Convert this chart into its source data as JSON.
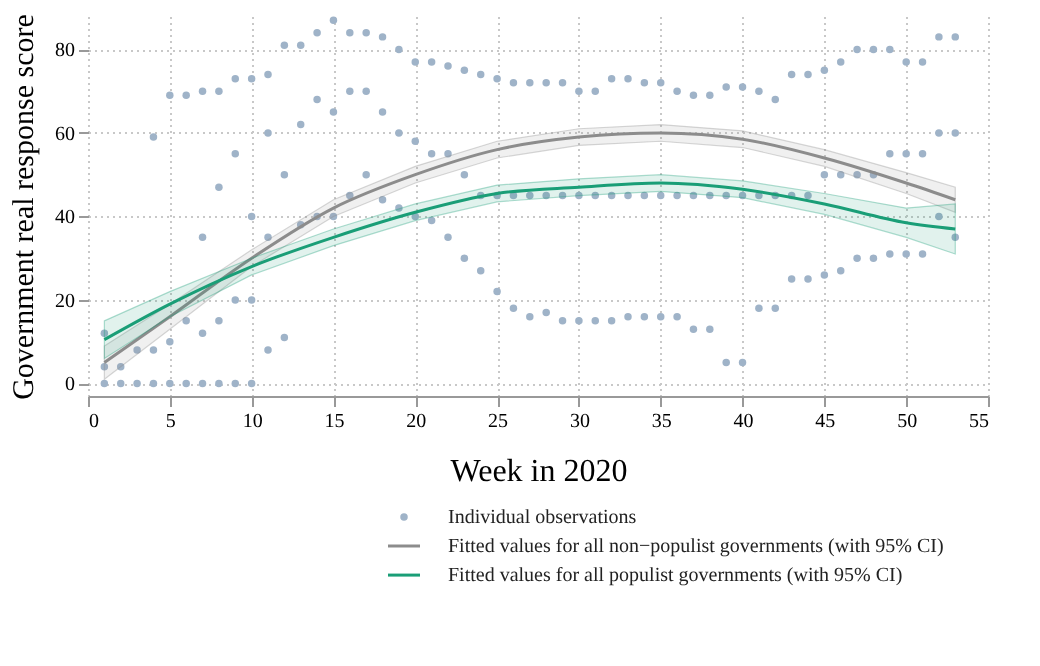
{
  "chart_data": {
    "type": "scatter",
    "xlabel": "Week in 2020",
    "ylabel": "Government real response score",
    "xlim": [
      0,
      55
    ],
    "ylim": [
      -3,
      88
    ],
    "xticks": [
      0,
      5,
      10,
      15,
      20,
      25,
      30,
      35,
      40,
      45,
      50,
      55
    ],
    "yticks": [
      0,
      20,
      40,
      60,
      80
    ],
    "grid": true,
    "legend": "bottom",
    "series": [
      {
        "name": "Individual observations",
        "marker": "circle",
        "color": "#9fb3c8",
        "x": [
          1,
          1,
          1,
          2,
          2,
          3,
          3,
          4,
          4,
          4,
          5,
          5,
          5,
          6,
          6,
          6,
          7,
          7,
          7,
          7,
          8,
          8,
          8,
          8,
          9,
          9,
          9,
          9,
          10,
          10,
          10,
          10,
          11,
          11,
          11,
          11,
          12,
          12,
          12,
          13,
          13,
          13,
          14,
          14,
          14,
          15,
          15,
          15,
          16,
          16,
          16,
          17,
          17,
          17,
          18,
          18,
          18,
          19,
          19,
          19,
          20,
          20,
          20,
          21,
          21,
          21,
          22,
          22,
          22,
          23,
          23,
          23,
          24,
          24,
          24,
          25,
          25,
          25,
          26,
          26,
          26,
          27,
          27,
          27,
          28,
          28,
          28,
          29,
          29,
          29,
          30,
          30,
          30,
          31,
          31,
          31,
          32,
          32,
          32,
          33,
          33,
          33,
          34,
          34,
          34,
          35,
          35,
          35,
          36,
          36,
          36,
          37,
          37,
          37,
          38,
          38,
          38,
          39,
          39,
          39,
          40,
          40,
          40,
          41,
          41,
          41,
          42,
          42,
          42,
          43,
          43,
          43,
          44,
          44,
          44,
          45,
          45,
          45,
          46,
          46,
          46,
          47,
          47,
          47,
          48,
          48,
          48,
          49,
          49,
          49,
          50,
          50,
          50,
          51,
          51,
          51,
          52,
          52,
          52,
          53,
          53,
          53
        ],
        "values": [
          0,
          4,
          12,
          0,
          4,
          0,
          8,
          0,
          8,
          59,
          0,
          10,
          69,
          0,
          15,
          69,
          0,
          12,
          35,
          70,
          0,
          15,
          47,
          70,
          0,
          20,
          55,
          73,
          0,
          20,
          40,
          73,
          8,
          35,
          60,
          74,
          11,
          50,
          81,
          38,
          62,
          81,
          40,
          68,
          84,
          40,
          65,
          87,
          45,
          70,
          84,
          50,
          70,
          84,
          44,
          65,
          83,
          42,
          60,
          80,
          40,
          58,
          77,
          39,
          55,
          77,
          35,
          55,
          76,
          30,
          50,
          75,
          27,
          45,
          74,
          22,
          45,
          73,
          18,
          45,
          72,
          16,
          45,
          72,
          17,
          45,
          72,
          15,
          45,
          72,
          15,
          45,
          70,
          15,
          45,
          70,
          15,
          45,
          73,
          16,
          45,
          73,
          16,
          45,
          72,
          16,
          45,
          72,
          16,
          45,
          70,
          13,
          45,
          69,
          13,
          45,
          69,
          5,
          45,
          71,
          5,
          45,
          71,
          18,
          45,
          70,
          18,
          45,
          68,
          25,
          45,
          74,
          25,
          45,
          74,
          26,
          50,
          75,
          27,
          50,
          77,
          30,
          50,
          80,
          30,
          50,
          80,
          31,
          55,
          80,
          31,
          55,
          77,
          31,
          55,
          77,
          40,
          60,
          83,
          35,
          60,
          83
        ]
      },
      {
        "name": "Fitted values for all non−populist governments (with 95% CI)",
        "type": "line",
        "line_style": "solid",
        "color": "#8c8c8c",
        "x": [
          1,
          5,
          10,
          15,
          20,
          25,
          30,
          35,
          40,
          45,
          50,
          53
        ],
        "values": [
          5,
          16,
          30,
          42,
          50,
          56,
          59,
          60,
          58.5,
          54,
          48,
          44
        ],
        "lower": [
          1,
          13,
          28,
          40,
          48,
          54,
          57,
          58,
          56.5,
          52,
          45.5,
          41
        ],
        "upper": [
          9,
          19,
          32,
          44,
          52,
          58,
          61,
          62,
          60.5,
          56,
          50.5,
          47
        ]
      },
      {
        "name": "Fitted values for all populist governments (with 95% CI)",
        "type": "line",
        "line_style": "solid",
        "color": "#1a9e77",
        "x": [
          1,
          5,
          10,
          15,
          20,
          25,
          30,
          35,
          40,
          45,
          50,
          53
        ],
        "values": [
          10.5,
          19,
          28,
          35,
          41,
          45.5,
          47,
          48,
          46.5,
          43,
          38.5,
          37
        ],
        "lower": [
          6,
          16,
          26,
          33,
          39,
          43.5,
          45,
          46,
          44.5,
          40.5,
          35,
          31
        ],
        "upper": [
          15,
          22,
          30,
          37,
          43,
          47.5,
          49,
          50,
          48.5,
          45.5,
          42,
          43
        ]
      }
    ]
  }
}
